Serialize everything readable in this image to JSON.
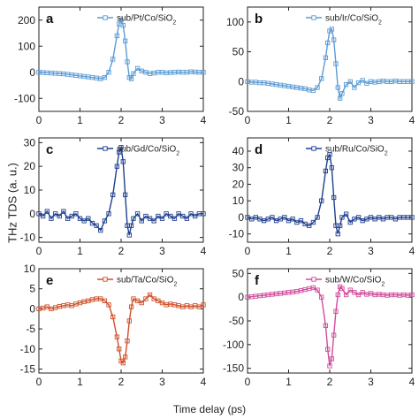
{
  "figure": {
    "ylabel": "THz TDS (a. u.)",
    "xlabel": "Time delay (ps)"
  },
  "chart_data": [
    {
      "type": "line",
      "panel": "a",
      "legend": "sub/Pt/Co/SiO",
      "legend_sub": "2",
      "color": "#5b9bd5",
      "xlim": [
        0,
        4
      ],
      "ylim": [
        -150,
        250
      ],
      "xticks": [
        0,
        1,
        2,
        3,
        4
      ],
      "yticks": [
        -100,
        0,
        100,
        200
      ],
      "x": [
        0,
        0.1,
        0.2,
        0.3,
        0.4,
        0.5,
        0.6,
        0.7,
        0.8,
        0.9,
        1.0,
        1.1,
        1.2,
        1.3,
        1.4,
        1.5,
        1.6,
        1.7,
        1.8,
        1.9,
        1.95,
        2.0,
        2.05,
        2.1,
        2.15,
        2.2,
        2.25,
        2.3,
        2.4,
        2.5,
        2.6,
        2.7,
        2.8,
        2.9,
        3.0,
        3.1,
        3.2,
        3.3,
        3.4,
        3.5,
        3.6,
        3.7,
        3.8,
        3.9,
        4.0
      ],
      "y": [
        0,
        -1,
        -2,
        -3,
        -4,
        -5,
        -6,
        -8,
        -10,
        -12,
        -14,
        -16,
        -18,
        -20,
        -22,
        -25,
        -20,
        0,
        50,
        140,
        185,
        200,
        180,
        120,
        40,
        -20,
        -25,
        -5,
        15,
        5,
        0,
        -5,
        -3,
        0,
        0,
        -2,
        -1,
        0,
        1,
        0,
        0,
        2,
        1,
        0,
        0
      ]
    },
    {
      "type": "line",
      "panel": "b",
      "legend": "sub/Ir/Co/SiO",
      "legend_sub": "2",
      "color": "#5b9bd5",
      "xlim": [
        0,
        4
      ],
      "ylim": [
        -50,
        125
      ],
      "xticks": [
        0,
        1,
        2,
        3,
        4
      ],
      "yticks": [
        -50,
        0,
        50,
        100
      ],
      "x": [
        0,
        0.1,
        0.2,
        0.3,
        0.4,
        0.5,
        0.6,
        0.7,
        0.8,
        0.9,
        1.0,
        1.1,
        1.2,
        1.3,
        1.4,
        1.5,
        1.6,
        1.7,
        1.8,
        1.9,
        1.95,
        2.0,
        2.05,
        2.1,
        2.15,
        2.2,
        2.25,
        2.3,
        2.4,
        2.5,
        2.6,
        2.7,
        2.8,
        2.9,
        3.0,
        3.1,
        3.2,
        3.3,
        3.4,
        3.5,
        3.6,
        3.7,
        3.8,
        3.9,
        4.0
      ],
      "y": [
        0,
        -1,
        -1,
        -2,
        -2,
        -3,
        -4,
        -5,
        -6,
        -7,
        -8,
        -9,
        -10,
        -11,
        -12,
        -14,
        -15,
        -10,
        5,
        40,
        65,
        85,
        88,
        70,
        30,
        -10,
        -28,
        -20,
        -5,
        0,
        -10,
        -2,
        2,
        -3,
        0,
        -1,
        0,
        1,
        0,
        0,
        1,
        0,
        0,
        0,
        0
      ]
    },
    {
      "type": "line",
      "panel": "c",
      "legend": "sub/Gd/Co/SiO",
      "legend_sub": "2",
      "color": "#1f3f8f",
      "xlim": [
        0,
        4
      ],
      "ylim": [
        -12,
        32
      ],
      "xticks": [
        0,
        1,
        2,
        3,
        4
      ],
      "yticks": [
        -10,
        0,
        10,
        20,
        30
      ],
      "x": [
        0,
        0.1,
        0.2,
        0.3,
        0.4,
        0.5,
        0.6,
        0.7,
        0.8,
        0.9,
        1.0,
        1.1,
        1.2,
        1.3,
        1.4,
        1.5,
        1.6,
        1.7,
        1.8,
        1.9,
        1.95,
        2.0,
        2.05,
        2.1,
        2.15,
        2.2,
        2.25,
        2.3,
        2.4,
        2.5,
        2.6,
        2.7,
        2.8,
        2.9,
        3.0,
        3.1,
        3.2,
        3.3,
        3.4,
        3.5,
        3.6,
        3.7,
        3.8,
        3.9,
        4.0
      ],
      "y": [
        0,
        -1,
        1,
        -2,
        0,
        -1,
        1,
        -2,
        -1,
        0,
        -2,
        -3,
        -2,
        -4,
        -5,
        -7,
        -3,
        0,
        8,
        20,
        26,
        28,
        22,
        8,
        -5,
        -9,
        -5,
        -2,
        0,
        -3,
        -1,
        -2,
        -3,
        -1,
        -2,
        0,
        -1,
        -2,
        0,
        -1,
        -2,
        0,
        -1,
        0,
        0
      ]
    },
    {
      "type": "line",
      "panel": "d",
      "legend": "sub/Ru/Co/SiO",
      "legend_sub": "2",
      "color": "#1f3f8f",
      "xlim": [
        0,
        4
      ],
      "ylim": [
        -15,
        48
      ],
      "xticks": [
        0,
        1,
        2,
        3,
        4
      ],
      "yticks": [
        -10,
        0,
        10,
        20,
        30,
        40
      ],
      "x": [
        0,
        0.1,
        0.2,
        0.3,
        0.4,
        0.5,
        0.6,
        0.7,
        0.8,
        0.9,
        1.0,
        1.1,
        1.2,
        1.3,
        1.4,
        1.5,
        1.6,
        1.7,
        1.8,
        1.9,
        1.95,
        2.0,
        2.05,
        2.1,
        2.15,
        2.2,
        2.25,
        2.3,
        2.4,
        2.5,
        2.6,
        2.7,
        2.8,
        2.9,
        3.0,
        3.1,
        3.2,
        3.3,
        3.4,
        3.5,
        3.6,
        3.7,
        3.8,
        3.9,
        4.0
      ],
      "y": [
        0,
        -1,
        0,
        -1,
        -2,
        -1,
        0,
        -2,
        -1,
        0,
        -2,
        -1,
        -3,
        -2,
        -4,
        -5,
        -3,
        0,
        10,
        28,
        36,
        38,
        30,
        12,
        -5,
        -10,
        -5,
        0,
        2,
        -3,
        -1,
        0,
        -2,
        -1,
        0,
        -1,
        0,
        -1,
        0,
        0,
        -1,
        0,
        0,
        0,
        0
      ]
    },
    {
      "type": "line",
      "panel": "e",
      "legend": "sub/Ta/Co/SiO",
      "legend_sub": "2",
      "color": "#d0502a",
      "xlim": [
        0,
        4
      ],
      "ylim": [
        -16,
        10
      ],
      "xticks": [
        0,
        1,
        2,
        3,
        4
      ],
      "yticks": [
        -15,
        -10,
        -5,
        0,
        5,
        10
      ],
      "x": [
        0,
        0.1,
        0.2,
        0.3,
        0.4,
        0.5,
        0.6,
        0.7,
        0.8,
        0.9,
        1.0,
        1.1,
        1.2,
        1.3,
        1.4,
        1.5,
        1.6,
        1.7,
        1.8,
        1.9,
        1.95,
        2.0,
        2.05,
        2.1,
        2.15,
        2.2,
        2.25,
        2.3,
        2.4,
        2.5,
        2.6,
        2.7,
        2.8,
        2.9,
        3.0,
        3.1,
        3.2,
        3.3,
        3.4,
        3.5,
        3.6,
        3.7,
        3.8,
        3.9,
        4.0
      ],
      "y": [
        0,
        0.2,
        0.5,
        0,
        0.3,
        0.6,
        0.8,
        1,
        0.8,
        1.2,
        1.5,
        1.8,
        2,
        2.3,
        2.5,
        2.5,
        2,
        1,
        -2,
        -7,
        -10,
        -13,
        -13.5,
        -12,
        -8,
        -3,
        0.5,
        2.5,
        2,
        1.5,
        2.5,
        3.5,
        2.5,
        2,
        1.5,
        1,
        1.2,
        1,
        0.8,
        0.5,
        0.8,
        0.5,
        0.8,
        0.5,
        1
      ]
    },
    {
      "type": "line",
      "panel": "f",
      "legend": "sub/W/Co/SiO",
      "legend_sub": "2",
      "color": "#d14a9c",
      "xlim": [
        0,
        4
      ],
      "ylim": [
        -160,
        60
      ],
      "xticks": [
        0,
        1,
        2,
        3,
        4
      ],
      "yticks": [
        -150,
        -100,
        -50,
        0,
        50
      ],
      "x": [
        0,
        0.1,
        0.2,
        0.3,
        0.4,
        0.5,
        0.6,
        0.7,
        0.8,
        0.9,
        1.0,
        1.1,
        1.2,
        1.3,
        1.4,
        1.5,
        1.6,
        1.7,
        1.8,
        1.9,
        1.95,
        2.0,
        2.05,
        2.1,
        2.15,
        2.2,
        2.25,
        2.3,
        2.4,
        2.5,
        2.6,
        2.7,
        2.8,
        2.9,
        3.0,
        3.1,
        3.2,
        3.3,
        3.4,
        3.5,
        3.6,
        3.7,
        3.8,
        3.9,
        4.0
      ],
      "y": [
        0,
        1,
        2,
        3,
        4,
        5,
        6,
        7,
        8,
        9,
        10,
        11,
        12,
        14,
        16,
        18,
        20,
        15,
        0,
        -60,
        -110,
        -145,
        -130,
        -80,
        -30,
        5,
        22,
        18,
        5,
        15,
        10,
        5,
        10,
        6,
        8,
        5,
        6,
        5,
        4,
        5,
        5,
        4,
        5,
        4,
        5
      ]
    }
  ]
}
